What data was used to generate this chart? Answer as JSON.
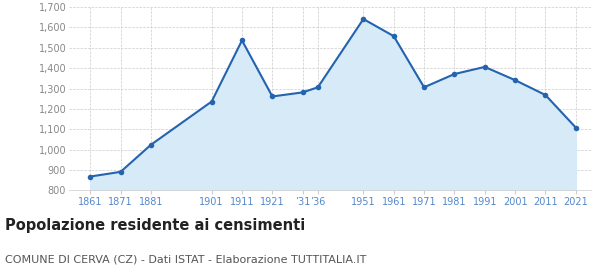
{
  "years": [
    1861,
    1871,
    1881,
    1901,
    1911,
    1921,
    1931,
    1936,
    1951,
    1961,
    1971,
    1981,
    1991,
    2001,
    2011,
    2021
  ],
  "population": [
    868,
    891,
    1024,
    1236,
    1536,
    1261,
    1281,
    1306,
    1641,
    1557,
    1306,
    1371,
    1406,
    1341,
    1268,
    1108
  ],
  "ylim": [
    800,
    1700
  ],
  "yticks": [
    800,
    900,
    1000,
    1100,
    1200,
    1300,
    1400,
    1500,
    1600,
    1700
  ],
  "xlim_left": 1854,
  "xlim_right": 2026,
  "line_color": "#2463ae",
  "fill_color": "#d6eaf8",
  "marker_color": "#2463ae",
  "grid_color": "#cccccc",
  "bg_color": "#ffffff",
  "title": "Popolazione residente ai censimenti",
  "subtitle": "COMUNE DI CERVA (CZ) - Dati ISTAT - Elaborazione TUTTITALIA.IT",
  "title_fontsize": 10.5,
  "subtitle_fontsize": 8,
  "tick_label_color": "#5588cc",
  "ytick_label_color": "#888888",
  "x_tick_positions": [
    1861,
    1871,
    1881,
    1901,
    1911,
    1921,
    1931,
    1936,
    1951,
    1961,
    1971,
    1981,
    1991,
    2001,
    2011,
    2021
  ],
  "x_tick_labels": [
    "1861",
    "1871",
    "1881",
    "1901",
    "1911",
    "1921",
    "’31",
    "’36",
    "1951",
    "1961",
    "1971",
    "1981",
    "1991",
    "2001",
    "2011",
    "2021"
  ]
}
